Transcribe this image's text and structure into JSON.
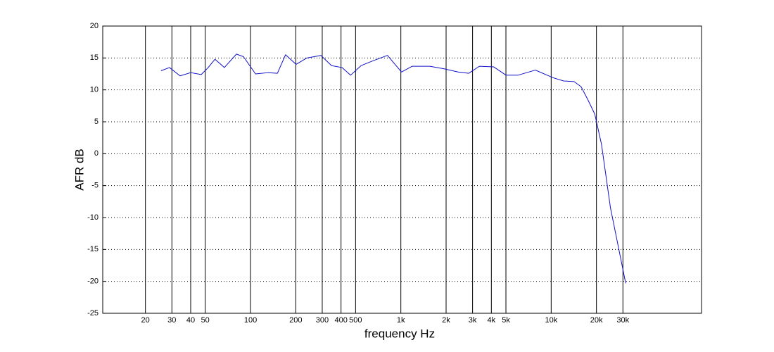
{
  "chart_data": {
    "type": "line",
    "xlabel": "frequency  Hz",
    "ylabel": "AFR dB",
    "x_scale": "log",
    "grid": true,
    "xlim": [
      10.4,
      100000
    ],
    "ylim": [
      -25,
      20
    ],
    "xticks": [
      20,
      30,
      40,
      50,
      100,
      200,
      300,
      400,
      500,
      {
        "value": 1000,
        "label": "1k"
      },
      {
        "value": 2000,
        "label": "2k"
      },
      {
        "value": 3000,
        "label": "3k"
      },
      {
        "value": 4000,
        "label": "4k"
      },
      {
        "value": 5000,
        "label": "5k"
      },
      {
        "value": 10000,
        "label": "10k"
      },
      {
        "value": 20000,
        "label": "20k"
      },
      {
        "value": 30000,
        "label": "30k"
      }
    ],
    "yticks": [
      -25,
      -20,
      -15,
      -10,
      -5,
      0,
      5,
      10,
      15,
      20
    ],
    "x": [
      25.4,
      28.9,
      34,
      40,
      47,
      52.3,
      58,
      67,
      80.6,
      89.8,
      108,
      131,
      151,
      171,
      201,
      237,
      294,
      346,
      406,
      463,
      544,
      660,
      815,
      1010,
      1190,
      1560,
      1940,
      2400,
      2830,
      3330,
      4150,
      5010,
      6010,
      7850,
      10300,
      12100,
      14200,
      15800,
      17500,
      19500,
      21600,
      24800,
      28200,
      31300
    ],
    "series": [
      {
        "color": "#1010c8",
        "values": [
          13.0,
          13.5,
          12.2,
          12.7,
          12.4,
          13.5,
          14.8,
          13.5,
          15.6,
          15.2,
          12.5,
          12.7,
          12.6,
          15.5,
          14.0,
          15.0,
          15.4,
          13.8,
          13.5,
          12.3,
          13.8,
          14.6,
          15.4,
          12.8,
          13.7,
          13.7,
          13.3,
          12.8,
          12.6,
          13.7,
          13.6,
          12.3,
          12.3,
          13.1,
          11.9,
          11.4,
          11.3,
          10.5,
          8.5,
          6.2,
          1.5,
          -8.5,
          -15,
          -20.3
        ]
      }
    ]
  }
}
